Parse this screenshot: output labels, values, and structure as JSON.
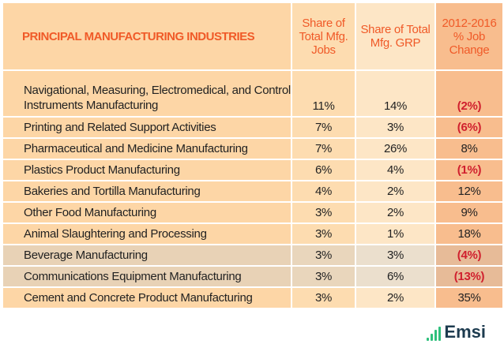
{
  "title": "PRINCIPAL MANUFACTURING INDUSTRIES",
  "columns": [
    "Share of Total Mfg. Jobs",
    "Share of Total Mfg. GRP",
    "2012-2016 % Job Change"
  ],
  "rows": [
    {
      "name": "Navigational, Measuring, Electromedical, and Control Instruments Manufacturing",
      "jobs": "11%",
      "grp": "14%",
      "change": "(2%)",
      "negative": true
    },
    {
      "name": "Printing and Related Support Activities",
      "jobs": "7%",
      "grp": "3%",
      "change": "(6%)",
      "negative": true
    },
    {
      "name": "Pharmaceutical and Medicine Manufacturing",
      "jobs": "7%",
      "grp": "26%",
      "change": "8%",
      "negative": false
    },
    {
      "name": "Plastics Product Manufacturing",
      "jobs": "6%",
      "grp": "4%",
      "change": "(1%)",
      "negative": true
    },
    {
      "name": "Bakeries and Tortilla Manufacturing",
      "jobs": "4%",
      "grp": "2%",
      "change": "12%",
      "negative": false
    },
    {
      "name": "Other Food Manufacturing",
      "jobs": "3%",
      "grp": "2%",
      "change": "9%",
      "negative": false
    },
    {
      "name": "Animal Slaughtering and Processing",
      "jobs": "3%",
      "grp": "1%",
      "change": "18%",
      "negative": false
    },
    {
      "name": "Beverage Manufacturing",
      "jobs": "3%",
      "grp": "3%",
      "change": "(4%)",
      "negative": true
    },
    {
      "name": "Communications Equipment Manufacturing",
      "jobs": "3%",
      "grp": "6%",
      "change": "(13%)",
      "negative": true
    },
    {
      "name": "Cement and Concrete Product Manufacturing",
      "jobs": "3%",
      "grp": "2%",
      "change": "35%",
      "negative": false
    }
  ],
  "logo": {
    "text": "Emsi",
    "color": "#2fc07d"
  },
  "colors": {
    "header": "#f05a28",
    "negative": "#d0202e"
  }
}
